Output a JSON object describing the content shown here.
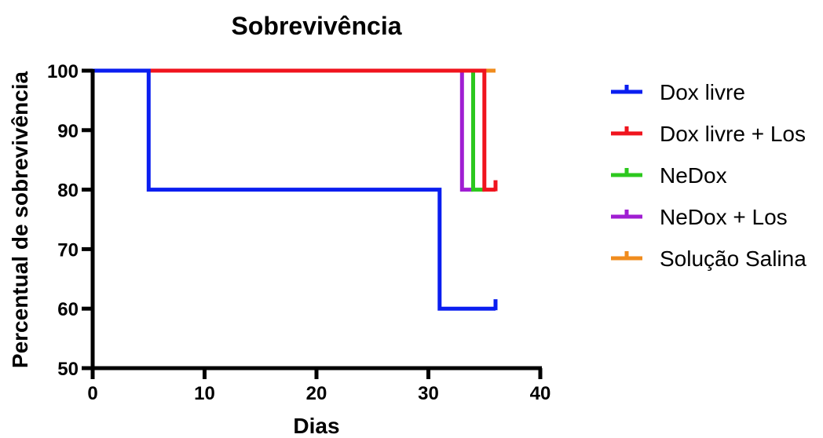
{
  "chart_data": {
    "type": "line",
    "step": true,
    "title": "Sobrevivência",
    "xlabel": "Dias",
    "ylabel": "Percentual de sobrevivência",
    "xlim": [
      0,
      40
    ],
    "ylim": [
      50,
      100
    ],
    "xticks": [
      0,
      10,
      20,
      30,
      40
    ],
    "yticks": [
      50,
      60,
      70,
      80,
      90,
      100
    ],
    "grid": false,
    "legend": "right",
    "series": [
      {
        "name": "Dox livre",
        "color": "#0a1ef0",
        "points": [
          [
            0,
            100
          ],
          [
            5,
            100
          ],
          [
            5,
            80
          ],
          [
            31,
            80
          ],
          [
            31,
            60
          ],
          [
            36,
            60
          ]
        ],
        "censor": [
          36,
          60
        ]
      },
      {
        "name": "Dox livre + Los",
        "color": "#f0141e",
        "points": [
          [
            0,
            100
          ],
          [
            35,
            100
          ],
          [
            35,
            80
          ],
          [
            36,
            80
          ]
        ],
        "censor": [
          36,
          80
        ]
      },
      {
        "name": "NeDox",
        "color": "#2cc81e",
        "points": [
          [
            0,
            100
          ],
          [
            34,
            100
          ],
          [
            34,
            80
          ],
          [
            35,
            80
          ]
        ],
        "censor": null
      },
      {
        "name": "NeDox + Los",
        "color": "#a01ed2",
        "points": [
          [
            0,
            100
          ],
          [
            33,
            100
          ],
          [
            33,
            80
          ],
          [
            34,
            80
          ]
        ],
        "censor": null
      },
      {
        "name": "Solução Salina",
        "color": "#f08c1e",
        "points": [
          [
            0,
            100
          ],
          [
            36,
            100
          ]
        ],
        "censor": null
      }
    ]
  }
}
